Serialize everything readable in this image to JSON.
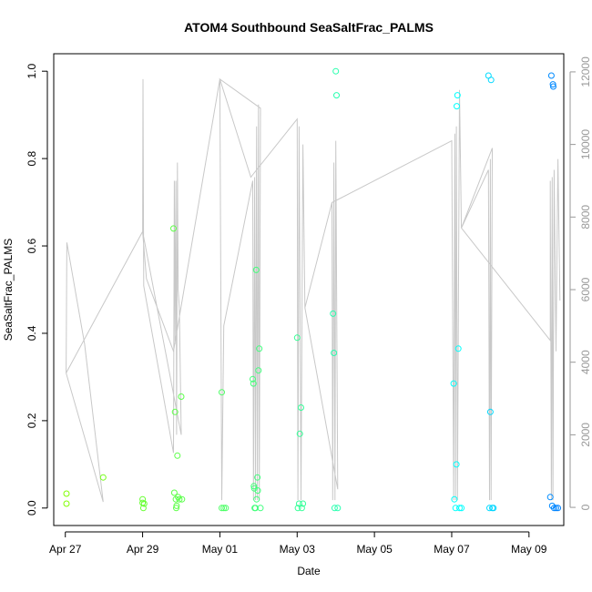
{
  "chart_data": {
    "type": "scatter",
    "title": "ATOM4 Southbound SeaSaltFrac_PALMS",
    "xlabel": "Date",
    "ylabel": "SeaSaltFrac_PALMS",
    "x_tick_labels": [
      "Apr 27",
      "Apr 29",
      "May 01",
      "May 03",
      "May 05",
      "May 07",
      "May 09"
    ],
    "x_range_days": [
      -0.3,
      12.9
    ],
    "ylim": [
      -0.04,
      1.04
    ],
    "y_ticks": [
      0.0,
      0.2,
      0.4,
      0.6,
      0.8,
      1.0
    ],
    "y_tick_labels": [
      "0.0",
      "0.2",
      "0.4",
      "0.6",
      "0.8",
      "1.0"
    ],
    "y2_ticks": [
      0,
      2000,
      4000,
      6000,
      8000,
      10000,
      12000
    ],
    "y2_tick_labels": [
      "0",
      "2000",
      "4000",
      "6000",
      "8000",
      "10000",
      "12000"
    ],
    "y2lim": [
      -500,
      12500
    ],
    "grid": false,
    "colors": {
      "points_start": "#80ff00",
      "points_mid": "#00ffff",
      "points_end": "#0080ff",
      "altitude_line": "#c8c8c8",
      "axis": "#000000",
      "right_axis": "#999999"
    },
    "series": [
      {
        "marker": "open-circle",
        "points": [
          [
            0.03,
            0.033
          ],
          [
            0.03,
            0.01
          ],
          [
            0.98,
            0.07
          ],
          [
            2.0,
            0.012
          ],
          [
            2.0,
            0.02
          ],
          [
            2.02,
            0.0
          ],
          [
            2.04,
            0.01
          ],
          [
            2.8,
            0.64
          ],
          [
            2.82,
            0.035
          ],
          [
            2.84,
            0.22
          ],
          [
            2.86,
            0.02
          ],
          [
            2.87,
            0.0
          ],
          [
            2.88,
            0.005
          ],
          [
            2.9,
            0.12
          ],
          [
            2.92,
            0.025
          ],
          [
            2.95,
            0.02
          ],
          [
            3.0,
            0.255
          ],
          [
            3.02,
            0.02
          ],
          [
            4.05,
            0.265
          ],
          [
            4.05,
            0.0
          ],
          [
            4.1,
            0.0
          ],
          [
            4.15,
            0.0
          ],
          [
            4.85,
            0.295
          ],
          [
            4.87,
            0.285
          ],
          [
            4.88,
            0.05
          ],
          [
            4.89,
            0.045
          ],
          [
            4.9,
            0.0
          ],
          [
            4.92,
            0.0
          ],
          [
            4.94,
            0.545
          ],
          [
            4.95,
            0.02
          ],
          [
            4.97,
            0.07
          ],
          [
            4.98,
            0.04
          ],
          [
            5.0,
            0.315
          ],
          [
            5.02,
            0.365
          ],
          [
            5.05,
            0.0
          ],
          [
            6.0,
            0.39
          ],
          [
            6.02,
            0.0
          ],
          [
            6.05,
            0.01
          ],
          [
            6.07,
            0.17
          ],
          [
            6.1,
            0.23
          ],
          [
            6.12,
            0.0
          ],
          [
            6.15,
            0.01
          ],
          [
            6.93,
            0.445
          ],
          [
            6.95,
            0.355
          ],
          [
            6.97,
            0.0
          ],
          [
            7.0,
            1.0
          ],
          [
            7.02,
            0.945
          ],
          [
            7.05,
            0.0
          ],
          [
            10.05,
            0.285
          ],
          [
            10.07,
            0.02
          ],
          [
            10.1,
            0.0
          ],
          [
            10.12,
            0.1
          ],
          [
            10.13,
            0.92
          ],
          [
            10.15,
            0.945
          ],
          [
            10.17,
            0.365
          ],
          [
            10.2,
            0.0
          ],
          [
            10.25,
            0.0
          ],
          [
            10.95,
            0.99
          ],
          [
            10.98,
            0.0
          ],
          [
            11.0,
            0.22
          ],
          [
            11.02,
            0.98
          ],
          [
            11.05,
            0.0
          ],
          [
            11.08,
            0.0
          ],
          [
            12.55,
            0.025
          ],
          [
            12.58,
            0.99
          ],
          [
            12.6,
            0.005
          ],
          [
            12.62,
            0.97
          ],
          [
            12.63,
            0.965
          ],
          [
            12.65,
            0.0
          ],
          [
            12.7,
            0.0
          ],
          [
            12.75,
            0.0
          ]
        ]
      },
      {
        "marker": "line",
        "axis": "right",
        "points": [
          [
            0.02,
            3700
          ],
          [
            0.04,
            7300
          ],
          [
            0.5,
            4500
          ],
          [
            0.98,
            150
          ],
          [
            0.02,
            3700
          ],
          [
            2.0,
            7600
          ],
          [
            2.01,
            11800
          ],
          [
            2.03,
            6100
          ],
          [
            2.8,
            1500
          ],
          [
            2.82,
            9000
          ],
          [
            2.84,
            4500
          ],
          [
            2.86,
            9000
          ],
          [
            2.88,
            2000
          ],
          [
            2.9,
            9500
          ],
          [
            2.92,
            6000
          ],
          [
            2.95,
            5500
          ],
          [
            3.0,
            2000
          ],
          [
            2.0,
            7600
          ],
          [
            2.1,
            6300
          ],
          [
            2.8,
            4300
          ],
          [
            4.0,
            11800
          ],
          [
            4.05,
            200
          ],
          [
            4.1,
            5000
          ],
          [
            4.85,
            9000
          ],
          [
            4.87,
            200
          ],
          [
            4.9,
            9100
          ],
          [
            4.92,
            200
          ],
          [
            4.95,
            10500
          ],
          [
            4.97,
            200
          ],
          [
            5.0,
            11100
          ],
          [
            5.02,
            200
          ],
          [
            5.05,
            11000
          ],
          [
            4.0,
            11800
          ],
          [
            4.8,
            9100
          ],
          [
            6.0,
            10700
          ],
          [
            6.02,
            200
          ],
          [
            6.05,
            10500
          ],
          [
            6.1,
            200
          ],
          [
            6.15,
            10000
          ],
          [
            6.2,
            5500
          ],
          [
            6.9,
            8400
          ],
          [
            6.92,
            200
          ],
          [
            6.95,
            9500
          ],
          [
            6.98,
            200
          ],
          [
            7.0,
            10100
          ],
          [
            7.05,
            500
          ],
          [
            6.2,
            5500
          ],
          [
            6.9,
            8400
          ],
          [
            10.0,
            10100
          ],
          [
            10.05,
            200
          ],
          [
            10.08,
            10300
          ],
          [
            10.1,
            200
          ],
          [
            10.12,
            10500
          ],
          [
            10.15,
            200
          ],
          [
            10.2,
            11500
          ],
          [
            10.25,
            7700
          ],
          [
            10.95,
            9300
          ],
          [
            10.98,
            200
          ],
          [
            11.0,
            9600
          ],
          [
            11.02,
            200
          ],
          [
            11.05,
            9900
          ],
          [
            10.25,
            7700
          ],
          [
            12.55,
            4600
          ],
          [
            12.55,
            9000
          ],
          [
            12.58,
            200
          ],
          [
            12.6,
            9100
          ],
          [
            12.62,
            200
          ],
          [
            12.65,
            9300
          ],
          [
            12.7,
            4300
          ],
          [
            12.75,
            9600
          ],
          [
            12.8,
            5700
          ]
        ]
      }
    ]
  }
}
